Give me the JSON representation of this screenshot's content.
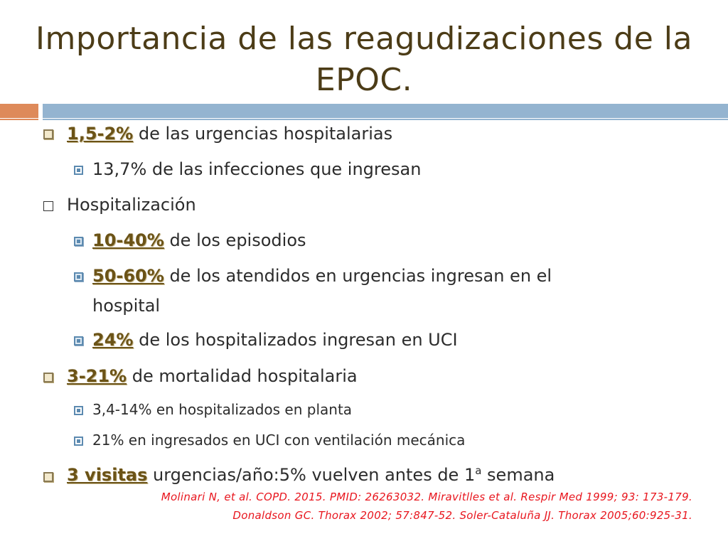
{
  "slide": {
    "title_line1": "Importancia de las reagudizaciones de la",
    "title_line2": "EPOC.",
    "items": [
      {
        "strong": "1,5-2%",
        "text": " de las urgencias hospitalarias"
      },
      {
        "text": "13,7% de las infecciones que ingresan"
      },
      {
        "text": "Hospitalización"
      },
      {
        "strong": "10-40%",
        "text": " de los episodios"
      },
      {
        "strong": "50-60%",
        "text": "  de los atendidos en urgencias ingresan en el",
        "text_cont": "hospital"
      },
      {
        "strong": "24%",
        "text": " de los hospitalizados ingresan en UCI"
      },
      {
        "strong": "3-21%",
        "text": " de mortalidad hospitalaria"
      },
      {
        "text": "3,4-14% en hospitalizados en planta"
      },
      {
        "text": "21% en ingresados en UCI con ventilación mecánica"
      },
      {
        "strong": "3 visitas",
        "text": " urgencias/año:5% vuelven antes de 1",
        "sup": "a",
        "text_after": " semana"
      }
    ],
    "references": [
      "Molinari N, et al.  COPD. 2015. PMID: 26263032. Miravitlles et al. Respir Med 1999; 93: 173-179.",
      "Donaldson GC. Thorax 2002; 57:847-52. Soler-Cataluña JJ. Thorax 2005;60:925-31."
    ],
    "colors": {
      "title": "#4c3c17",
      "accent_orange": "#de8a5a",
      "accent_blue": "#94b4d0",
      "highlight": "#6b5317",
      "reference": "#e8161e"
    }
  }
}
